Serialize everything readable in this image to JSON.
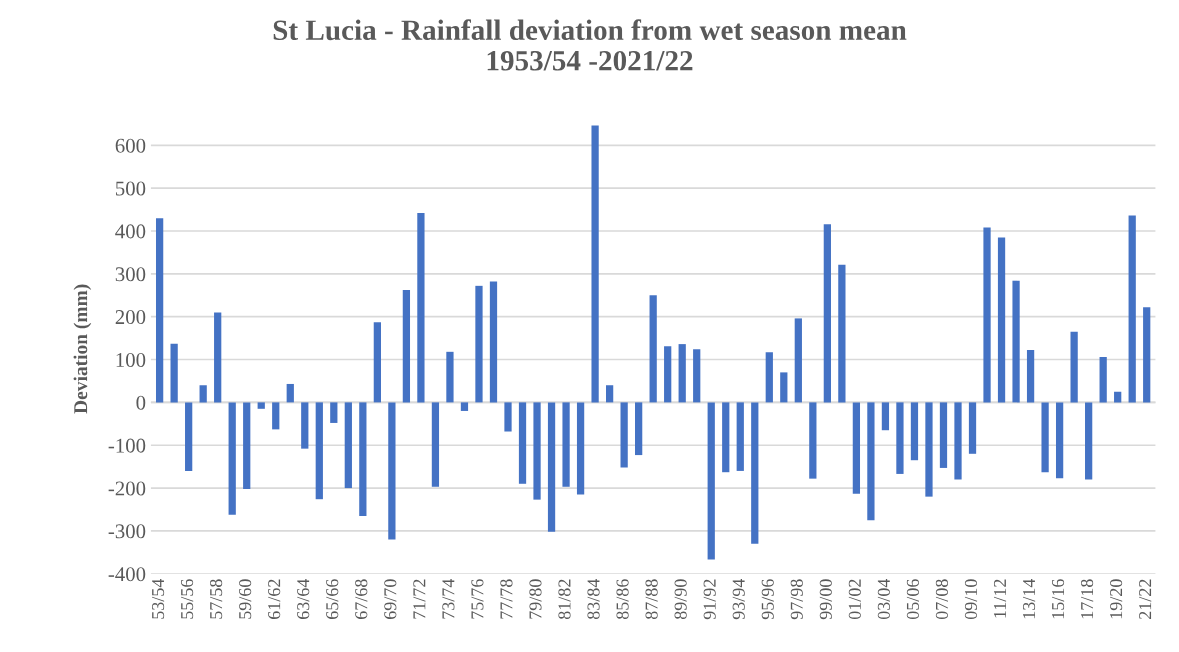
{
  "chart_data": {
    "type": "bar",
    "title": "St Lucia - Rainfall deviation from wet season mean\n1953/54 -2021/22",
    "ylabel": "Deviation (mm)",
    "categories": [
      "53/54",
      null,
      "55/56",
      null,
      "57/58",
      null,
      "59/60",
      null,
      "61/62",
      null,
      "63/64",
      null,
      "65/66",
      null,
      "67/68",
      null,
      "69/70",
      null,
      "71/72",
      null,
      "73/74",
      null,
      "75/76",
      null,
      "77/78",
      null,
      "79/80",
      null,
      "81/82",
      null,
      "83/84",
      null,
      "85/86",
      null,
      "87/88",
      null,
      "89/90",
      null,
      "91/92",
      null,
      "93/94",
      null,
      "95/96",
      null,
      "97/98",
      null,
      "99/00",
      null,
      "01/02",
      null,
      "03/04",
      null,
      "05/06",
      null,
      "07/08",
      null,
      "09/10",
      null,
      "11/12",
      null,
      "13/14",
      null,
      "15/16",
      null,
      "17/18",
      null,
      "19/20",
      null,
      "21/22"
    ],
    "values": [
      430,
      137,
      -160,
      40,
      210,
      -262,
      -202,
      -15,
      -63,
      43,
      -108,
      -226,
      -48,
      -200,
      -265,
      187,
      -320,
      262,
      442,
      -197,
      118,
      -20,
      272,
      282,
      -68,
      -190,
      -227,
      -302,
      -197,
      -215,
      646,
      40,
      -152,
      -123,
      250,
      131,
      136,
      124,
      -367,
      -163,
      -160,
      -330,
      117,
      70,
      196,
      -178,
      416,
      321,
      -213,
      -275,
      -65,
      -167,
      -135,
      -220,
      -153,
      -180,
      -120,
      408,
      385,
      284,
      122,
      -163,
      -177,
      165,
      -180,
      106,
      25,
      436,
      222
    ],
    "color": "#4472c4",
    "ylim": [
      -400,
      650
    ],
    "yticks": [
      -400,
      -300,
      -200,
      -100,
      0,
      100,
      200,
      300,
      400,
      500,
      600
    ],
    "grid": "y"
  }
}
